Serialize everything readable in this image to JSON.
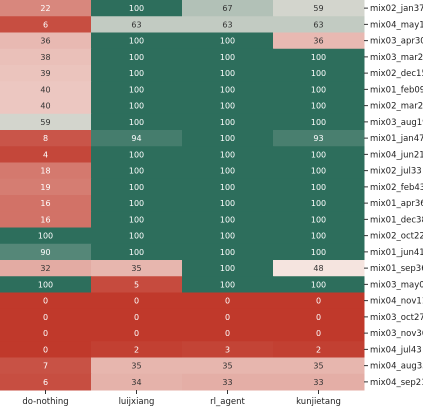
{
  "colors": {
    "low": "#c0392b",
    "mid": "#f7ebe6",
    "high": "#2d6e5c",
    "text_light": "#ffffff",
    "text_dark": "#333333"
  },
  "chart_data": {
    "type": "heatmap",
    "columns": [
      "do-nothing",
      "luijxiang",
      "rl_agent",
      "kunjietang"
    ],
    "rows": [
      {
        "name": "mix02_jan37",
        "values": [
          22,
          100,
          67,
          59
        ]
      },
      {
        "name": "mix04_may10",
        "values": [
          6,
          63,
          63,
          63
        ]
      },
      {
        "name": "mix03_apr30",
        "values": [
          36,
          100,
          100,
          36
        ]
      },
      {
        "name": "mix03_mar24",
        "values": [
          38,
          100,
          100,
          100
        ]
      },
      {
        "name": "mix02_dec15",
        "values": [
          39,
          100,
          100,
          100
        ]
      },
      {
        "name": "mix01_feb09",
        "values": [
          40,
          100,
          100,
          100
        ]
      },
      {
        "name": "mix02_mar24",
        "values": [
          40,
          100,
          100,
          100
        ]
      },
      {
        "name": "mix03_aug19",
        "values": [
          59,
          100,
          100,
          100
        ]
      },
      {
        "name": "mix01_jan47",
        "values": [
          8,
          94,
          100,
          93
        ]
      },
      {
        "name": "mix04_jun21",
        "values": [
          4,
          100,
          100,
          100
        ]
      },
      {
        "name": "mix02_jul33",
        "values": [
          18,
          100,
          100,
          100
        ]
      },
      {
        "name": "mix02_feb43",
        "values": [
          19,
          100,
          100,
          100
        ]
      },
      {
        "name": "mix01_apr36",
        "values": [
          16,
          100,
          100,
          100
        ]
      },
      {
        "name": "mix01_dec38",
        "values": [
          16,
          100,
          100,
          100
        ]
      },
      {
        "name": "mix02_oct22",
        "values": [
          100,
          100,
          100,
          100
        ]
      },
      {
        "name": "mix01_jun41",
        "values": [
          90,
          100,
          100,
          100
        ]
      },
      {
        "name": "mix01_sep36",
        "values": [
          32,
          35,
          100,
          48
        ]
      },
      {
        "name": "mix03_may07",
        "values": [
          100,
          5,
          100,
          100
        ]
      },
      {
        "name": "mix04_nov11",
        "values": [
          0,
          0,
          0,
          0
        ]
      },
      {
        "name": "mix03_oct27",
        "values": [
          0,
          0,
          0,
          0
        ]
      },
      {
        "name": "mix03_nov36",
        "values": [
          0,
          0,
          0,
          0
        ]
      },
      {
        "name": "mix04_jul43",
        "values": [
          0,
          2,
          3,
          2
        ]
      },
      {
        "name": "mix04_aug35",
        "values": [
          7,
          35,
          35,
          35
        ]
      },
      {
        "name": "mix04_sep21",
        "values": [
          6,
          34,
          33,
          33
        ]
      }
    ],
    "value_range": [
      0,
      100
    ],
    "colorbar": "none"
  }
}
